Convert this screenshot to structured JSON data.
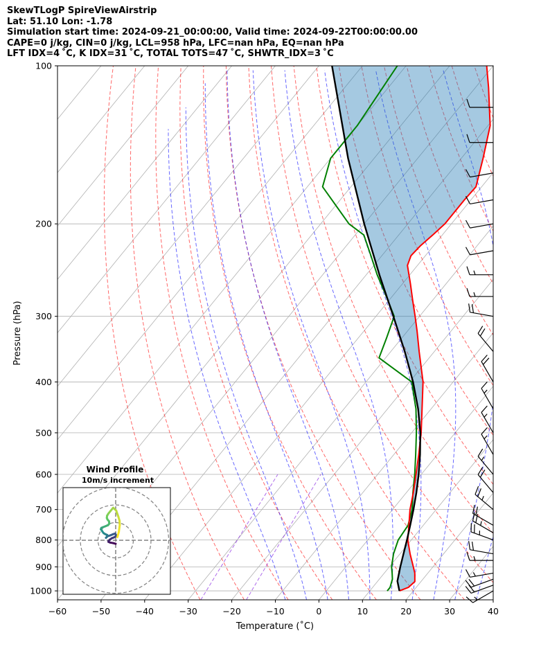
{
  "header": {
    "line1": "SkewTLogP SpireViewAirstrip",
    "line2": "Lat: 51.10   Lon: -1.78",
    "line3": "Simulation start time: 2024-09-21_00:00:00, Valid time: 2024-09-22T00:00:00.00",
    "line4": "CAPE=0 j/kg, CIN=0 j/kg, LCL=958 hPa, LFC=nan hPa, EQ=nan hPa",
    "line5": "LFT IDX=4 ˚C, K IDX=31 ˚C, TOTAL TOTS=47 ˚C, SHWTR_IDX=3 ˚C"
  },
  "chart_data": {
    "type": "skewt-logp",
    "xlabel": "Temperature (˚C)",
    "ylabel": "Pressure (hPa)",
    "xlim": [
      -60,
      40
    ],
    "ylim": [
      1040,
      100
    ],
    "xticks": [
      -60,
      -50,
      -40,
      -30,
      -20,
      -10,
      0,
      10,
      20,
      30,
      40
    ],
    "xtick_labels": [
      "−60",
      "−50",
      "−40",
      "−30",
      "−20",
      "−10",
      "0",
      "10",
      "20",
      "30",
      "40"
    ],
    "yticks": [
      100,
      200,
      300,
      400,
      500,
      600,
      700,
      800,
      900,
      1000
    ],
    "grid": true,
    "temperature": {
      "name": "Temperature",
      "color": "#ff0000",
      "p": [
        1000,
        985,
        960,
        925,
        900,
        850,
        800,
        750,
        700,
        650,
        600,
        550,
        500,
        450,
        400,
        350,
        320,
        300,
        280,
        260,
        240,
        230,
        220,
        210,
        200,
        180,
        170,
        150,
        130,
        110,
        100
      ],
      "t": [
        16.8,
        18.2,
        18.6,
        17.0,
        15.5,
        12.3,
        9.2,
        6.7,
        4.0,
        1.6,
        -1.2,
        -4.3,
        -7.8,
        -12.1,
        -16.9,
        -23.5,
        -27.8,
        -31.0,
        -34.5,
        -38.2,
        -42.3,
        -43.3,
        -43.0,
        -42.2,
        -41.5,
        -41.5,
        -41.3,
        -45.0,
        -49.5,
        -57.0,
        -61.5
      ]
    },
    "dewpoint": {
      "name": "Dewpoint",
      "color": "#008000",
      "p": [
        1000,
        985,
        950,
        925,
        900,
        850,
        800,
        750,
        700,
        650,
        600,
        550,
        500,
        450,
        400,
        360,
        330,
        300,
        270,
        250,
        230,
        210,
        200,
        170,
        150,
        130,
        100
      ],
      "t": [
        14.0,
        14.0,
        13.0,
        11.8,
        10.5,
        8.5,
        7.0,
        6.5,
        4.5,
        1.5,
        -1.5,
        -5.0,
        -8.9,
        -13.5,
        -19.5,
        -31.5,
        -33.5,
        -35.8,
        -42.5,
        -47.5,
        -52.5,
        -58.0,
        -63.5,
        -76.5,
        -80.0,
        -80.0,
        -82.0
      ]
    },
    "parcel": {
      "name": "Parcel profile",
      "color": "#000000",
      "p": [
        1000,
        958,
        900,
        850,
        800,
        750,
        700,
        650,
        600,
        550,
        500,
        450,
        400,
        350,
        300,
        250,
        200,
        150,
        100
      ],
      "t": [
        16.8,
        14.5,
        12.5,
        10.8,
        9.0,
        7.0,
        4.8,
        2.3,
        -0.6,
        -4.0,
        -8.0,
        -13.0,
        -19.2,
        -26.8,
        -36.0,
        -47.0,
        -60.0,
        -76.0,
        -97.0
      ]
    },
    "wind_barbs": {
      "p": [
        1000,
        975,
        950,
        925,
        875,
        850,
        800,
        775,
        750,
        700,
        650,
        600,
        550,
        500,
        450,
        400,
        350,
        300,
        275,
        250,
        225,
        200,
        180,
        160,
        140,
        120
      ],
      "speed_kt": [
        15,
        20,
        20,
        15,
        15,
        20,
        25,
        25,
        20,
        25,
        20,
        15,
        15,
        15,
        15,
        20,
        20,
        20,
        15,
        15,
        10,
        10,
        10,
        10,
        10,
        10
      ],
      "direction_deg": [
        240,
        250,
        250,
        260,
        270,
        280,
        290,
        300,
        300,
        310,
        320,
        320,
        330,
        330,
        330,
        330,
        320,
        280,
        270,
        270,
        260,
        260,
        260,
        260,
        270,
        270
      ]
    },
    "hodograph": {
      "title": "Wind Profile",
      "subtitle": "10m/s increment",
      "rings_ms": [
        10,
        20,
        30
      ],
      "u": [
        0.0,
        -1.5,
        -3.2,
        -4.1,
        -4.0,
        -3.4,
        -2.1,
        -1.0,
        0.0,
        0.2,
        -0.3,
        -1.5,
        -3.0,
        -4.7,
        -5.5,
        -5.0,
        -4.8,
        -5.8,
        -6.8,
        -7.5,
        -8.0,
        -8.4,
        -8.1,
        -7.2,
        -5.9,
        -4.4,
        -3.6,
        -3.8,
        -4.6,
        -5.0,
        -4.9,
        -4.2,
        -3.0,
        -1.4,
        0.3,
        1.5,
        2.2,
        2.3,
        1.8,
        1.0
      ],
      "v": [
        -2.0,
        -1.6,
        -1.3,
        -0.9,
        -0.4,
        0.3,
        1.2,
        1.6,
        2.2,
        2.9,
        3.8,
        3.4,
        2.8,
        2.2,
        1.4,
        1.9,
        3.0,
        3.4,
        4.0,
        4.9,
        5.8,
        6.2,
        7.0,
        7.4,
        7.9,
        8.5,
        9.4,
        10.8,
        11.7,
        12.6,
        13.8,
        15.0,
        16.5,
        18.4,
        16.8,
        13.4,
        11.0,
        8.6,
        4.8,
        1.8
      ]
    }
  }
}
